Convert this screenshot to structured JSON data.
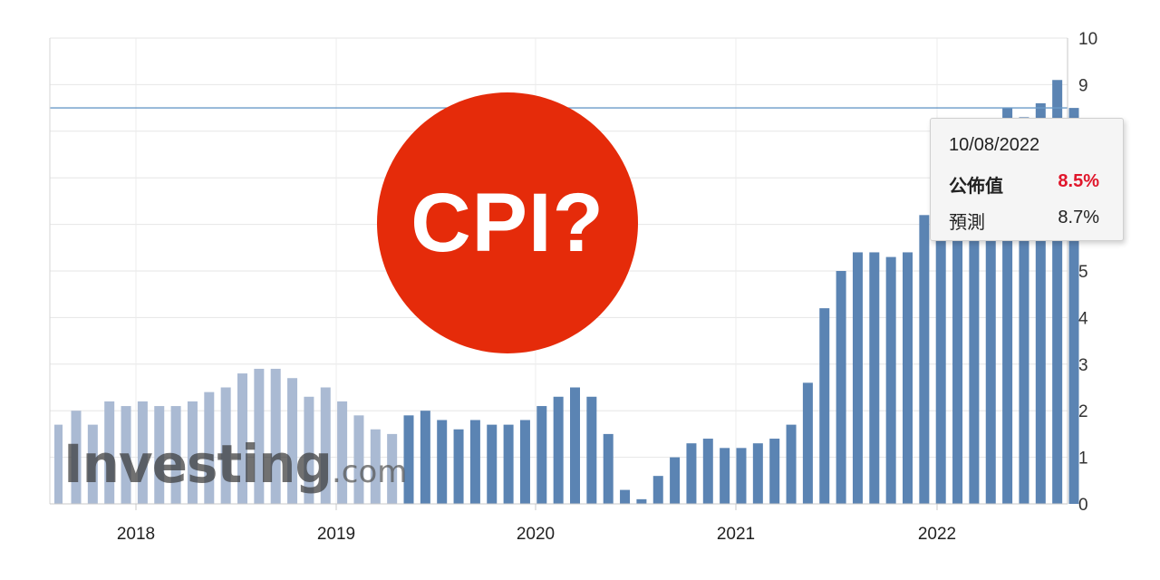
{
  "chart_data": {
    "type": "bar",
    "x_labels": [
      "2018",
      "2019",
      "2020",
      "2021",
      "2022"
    ],
    "y_ticks": [
      "0",
      "1",
      "2",
      "3",
      "4",
      "5",
      "6",
      "7",
      "8",
      "9",
      "10"
    ],
    "ylim": [
      0,
      10
    ],
    "grid": true,
    "legend": "none",
    "bar_color": "#5b84b3",
    "ghost_bar_color": "#aabad3",
    "reference_line": {
      "value": 8.5,
      "color": "#6a9ac8"
    },
    "series": [
      {
        "values": [
          2.0,
          1.7,
          2.2,
          2.1,
          2.2,
          2.1,
          2.1,
          2.2,
          2.4,
          2.5,
          2.8,
          2.9,
          2.9,
          2.7,
          2.3,
          2.5,
          2.2,
          1.9,
          1.6,
          1.5,
          1.9,
          2.0,
          1.8,
          1.6,
          1.8,
          1.7,
          1.7,
          1.8,
          2.1,
          2.3,
          2.5,
          2.3,
          1.5,
          0.3,
          0.1,
          0.6,
          1.0,
          1.3,
          1.4,
          1.2,
          1.2,
          1.3,
          1.4,
          1.7,
          2.6,
          4.2,
          5.0,
          5.4,
          5.4,
          5.3,
          5.4,
          6.2,
          6.8,
          7.0,
          7.5,
          7.9,
          8.5,
          8.3,
          8.6,
          9.1,
          8.5
        ]
      }
    ]
  },
  "badge": {
    "text": "CPI?"
  },
  "watermark": {
    "brand": "Investing",
    "suffix": ".com"
  },
  "tooltip": {
    "date": "10/08/2022",
    "actual_label": "公佈值",
    "actual_value": "8.5%",
    "forecast_label": "預測",
    "forecast_value": "8.7%"
  },
  "colors": {
    "accent_red": "#e52b0a",
    "value_red": "#e0162b"
  }
}
